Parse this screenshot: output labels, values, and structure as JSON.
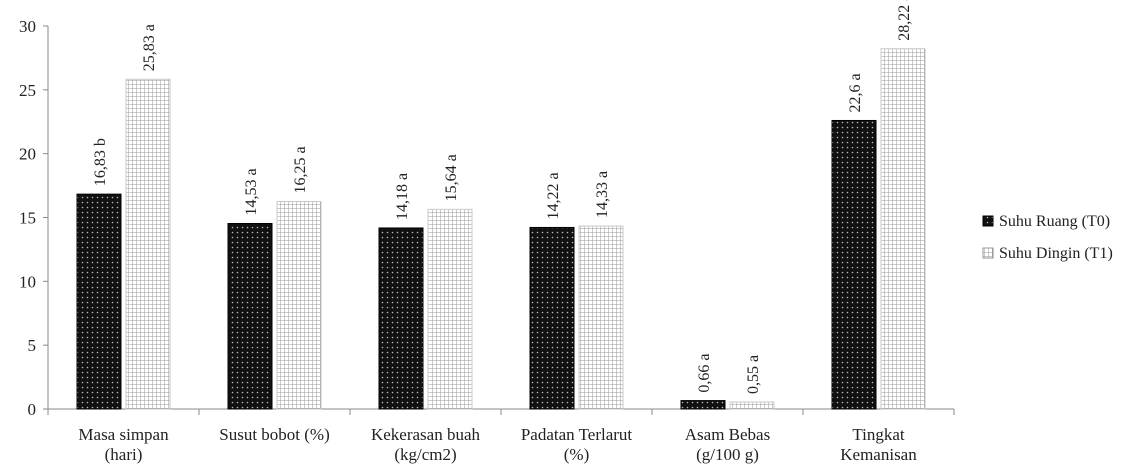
{
  "chart_data": {
    "type": "bar",
    "categories": [
      [
        "Masa simpan",
        "(hari)"
      ],
      [
        "Susut bobot (%)"
      ],
      [
        "Kekerasan buah",
        "(kg/cm2)"
      ],
      [
        "Padatan Terlarut",
        "(%)"
      ],
      [
        "Asam Bebas",
        "(g/100 g)"
      ],
      [
        "Tingkat",
        "Kemanisan"
      ]
    ],
    "series": [
      {
        "name": "Suhu Ruang (T0)",
        "values": [
          16.83,
          14.53,
          14.18,
          14.22,
          0.66,
          22.6
        ],
        "labels": [
          "16,83 b",
          "14,53 a",
          "14,18 a",
          "14,22 a",
          "0,66 a",
          "22,6 a"
        ],
        "fill": "#111111",
        "pattern": "dots"
      },
      {
        "name": "Suhu Dingin (T1)",
        "values": [
          25.83,
          16.25,
          15.64,
          14.33,
          0.55,
          28.22
        ],
        "labels": [
          "25,83 a",
          "16,25 a",
          "15,64 a",
          "14,33 a",
          "0,55 a",
          "28,22 a"
        ],
        "fill": "#ffffff",
        "pattern": "grid"
      }
    ],
    "ylim": [
      0,
      30
    ],
    "yticks": [
      0,
      5,
      10,
      15,
      20,
      25,
      30
    ],
    "title": "",
    "xlabel": "",
    "ylabel": "",
    "grid": false,
    "legend": "right"
  }
}
